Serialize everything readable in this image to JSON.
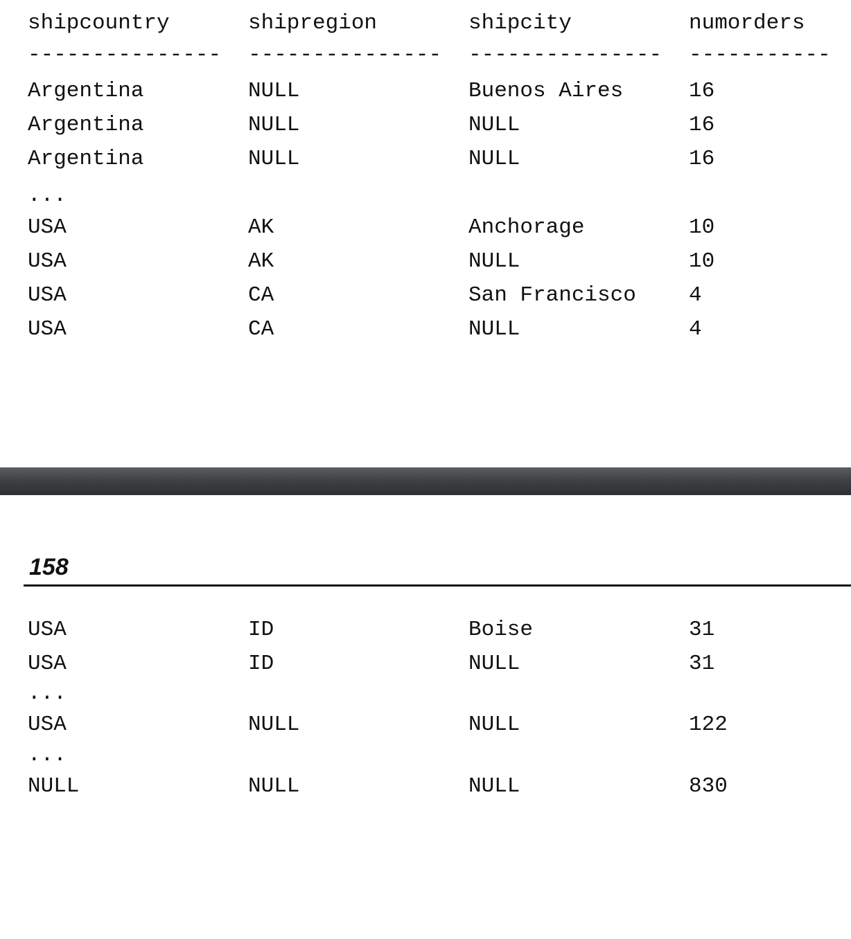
{
  "columns": [
    "shipcountry",
    "shipregion",
    "shipcity",
    "numorders"
  ],
  "separators": [
    "---------------",
    "---------------",
    "---------------",
    "-----------"
  ],
  "ellipsis": "...",
  "top_rows": [
    [
      "Argentina",
      "NULL",
      "Buenos Aires",
      "16"
    ],
    [
      "Argentina",
      "NULL",
      "NULL",
      "16"
    ],
    [
      "Argentina",
      "NULL",
      "NULL",
      "16"
    ],
    [
      "USA",
      "AK",
      "Anchorage",
      "10"
    ],
    [
      "USA",
      "AK",
      "NULL",
      "10"
    ],
    [
      "USA",
      "CA",
      "San Francisco",
      "4"
    ],
    [
      "USA",
      "CA",
      "NULL",
      "4"
    ]
  ],
  "page_number": "158",
  "bottom_rows": [
    [
      "USA",
      "ID",
      "Boise",
      "31"
    ],
    [
      "USA",
      "ID",
      "NULL",
      "31"
    ],
    [
      "USA",
      "NULL",
      "NULL",
      "122"
    ],
    [
      "NULL",
      "NULL",
      "NULL",
      "830"
    ]
  ]
}
